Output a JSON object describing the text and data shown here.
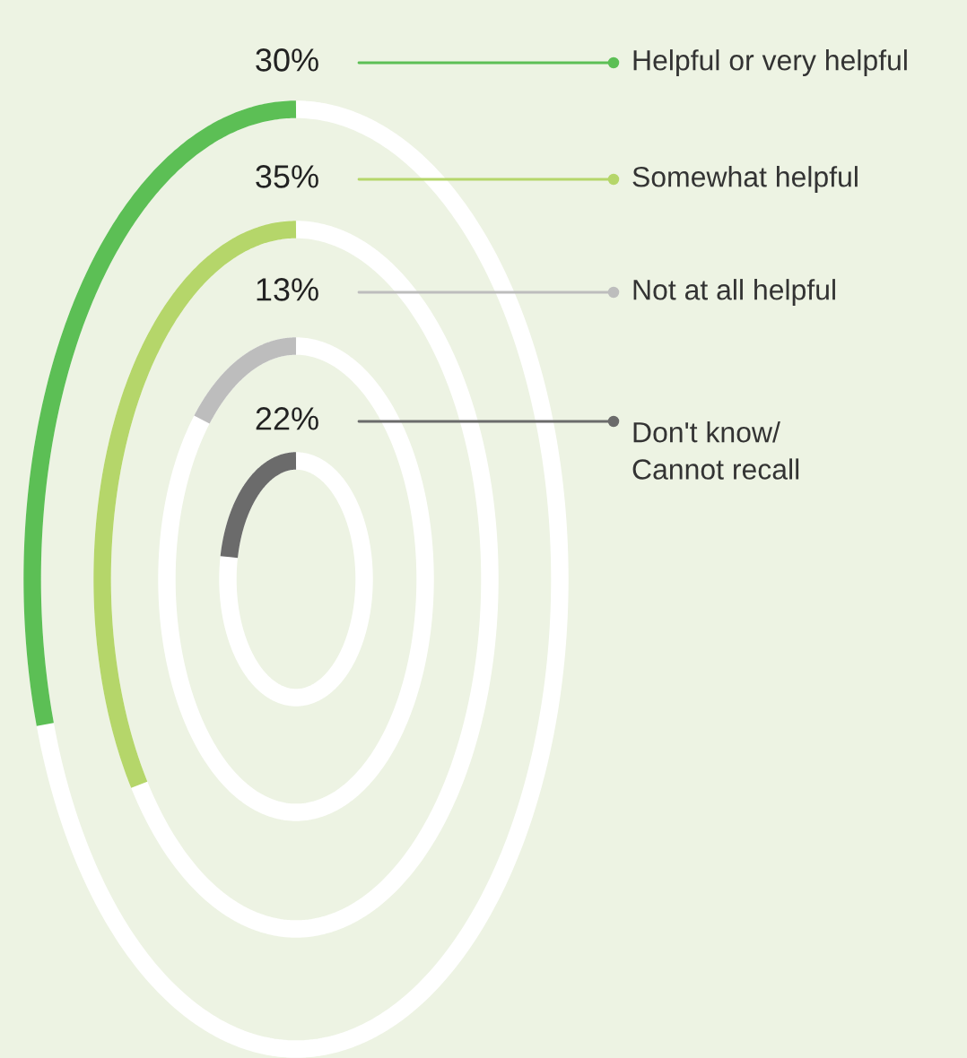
{
  "chart_data": {
    "type": "other",
    "categories": [
      "Helpful or very helpful",
      "Somewhat helpful",
      "Not at all helpful",
      "Don't know/\nCannot recall"
    ],
    "values": [
      30,
      35,
      13,
      22
    ],
    "value_labels": [
      "30%",
      "35%",
      "13%",
      "22%"
    ],
    "colors": [
      "#5cbf55",
      "#b5d66a",
      "#bdbdbd",
      "#6b6b6b"
    ]
  }
}
